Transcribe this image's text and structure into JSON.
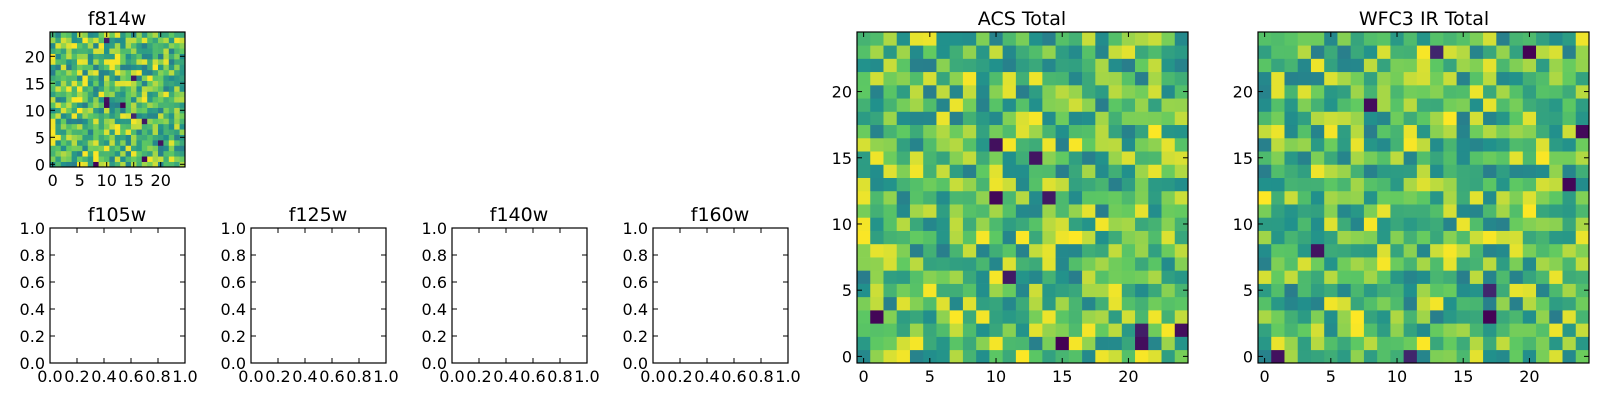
{
  "chart_data": [
    {
      "id": "f814w",
      "type": "heatmap",
      "title": "f814w",
      "grid_size": 25,
      "seed": 814,
      "dark_cells": 10,
      "xticks": [
        0,
        5,
        10,
        15,
        20
      ],
      "yticks": [
        0,
        5,
        10,
        15,
        20
      ],
      "xtick_labels": [
        "0",
        "5",
        "10",
        "15",
        "20"
      ],
      "ytick_labels": [
        "0",
        "5",
        "10",
        "15",
        "20"
      ],
      "xlim": [
        -0.5,
        24.5
      ],
      "ylim": [
        -0.5,
        24.5
      ],
      "colormap": "viridis"
    },
    {
      "id": "f105w",
      "type": "line",
      "title": "f105w",
      "series": [],
      "xlim": [
        0,
        1
      ],
      "ylim": [
        0,
        1
      ],
      "xticks": [
        0,
        0.2,
        0.4,
        0.6,
        0.8,
        1.0
      ],
      "yticks": [
        0,
        0.2,
        0.4,
        0.6,
        0.8,
        1.0
      ],
      "xtick_labels": [
        "0.0",
        "0.2",
        "0.4",
        "0.6",
        "0.8",
        "1.0"
      ],
      "ytick_labels": [
        "0.0",
        "0.2",
        "0.4",
        "0.6",
        "0.8",
        "1.0"
      ]
    },
    {
      "id": "f125w",
      "type": "line",
      "title": "f125w",
      "series": [],
      "xlim": [
        0,
        1
      ],
      "ylim": [
        0,
        1
      ],
      "xticks": [
        0,
        0.2,
        0.4,
        0.6,
        0.8,
        1.0
      ],
      "yticks": [
        0,
        0.2,
        0.4,
        0.6,
        0.8,
        1.0
      ],
      "xtick_labels": [
        "0.0",
        "0.2",
        "0.4",
        "0.6",
        "0.8",
        "1.0"
      ],
      "ytick_labels": [
        "0.0",
        "0.2",
        "0.4",
        "0.6",
        "0.8",
        "1.0"
      ]
    },
    {
      "id": "f140w",
      "type": "line",
      "title": "f140w",
      "series": [],
      "xlim": [
        0,
        1
      ],
      "ylim": [
        0,
        1
      ],
      "xticks": [
        0,
        0.2,
        0.4,
        0.6,
        0.8,
        1.0
      ],
      "yticks": [
        0,
        0.2,
        0.4,
        0.6,
        0.8,
        1.0
      ],
      "xtick_labels": [
        "0.0",
        "0.2",
        "0.4",
        "0.6",
        "0.8",
        "1.0"
      ],
      "ytick_labels": [
        "0.0",
        "0.2",
        "0.4",
        "0.6",
        "0.8",
        "1.0"
      ]
    },
    {
      "id": "f160w",
      "type": "line",
      "title": "f160w",
      "series": [],
      "xlim": [
        0,
        1
      ],
      "ylim": [
        0,
        1
      ],
      "xticks": [
        0,
        0.2,
        0.4,
        0.6,
        0.8,
        1.0
      ],
      "yticks": [
        0,
        0.2,
        0.4,
        0.6,
        0.8,
        1.0
      ],
      "xtick_labels": [
        "0.0",
        "0.2",
        "0.4",
        "0.6",
        "0.8",
        "1.0"
      ],
      "ytick_labels": [
        "0.0",
        "0.2",
        "0.4",
        "0.6",
        "0.8",
        "1.0"
      ]
    },
    {
      "id": "acs_total",
      "type": "heatmap",
      "title": "ACS Total",
      "grid_size": 25,
      "seed": 1234,
      "dark_cells": 10,
      "xticks": [
        0,
        5,
        10,
        15,
        20
      ],
      "yticks": [
        0,
        5,
        10,
        15,
        20
      ],
      "xtick_labels": [
        "0",
        "5",
        "10",
        "15",
        "20"
      ],
      "ytick_labels": [
        "0",
        "5",
        "10",
        "15",
        "20"
      ],
      "xlim": [
        -0.5,
        24.5
      ],
      "ylim": [
        -0.5,
        24.5
      ],
      "colormap": "viridis"
    },
    {
      "id": "wfc3_ir_total",
      "type": "heatmap",
      "title": "WFC3 IR Total",
      "grid_size": 25,
      "seed": 4321,
      "dark_cells": 10,
      "xticks": [
        0,
        5,
        10,
        15,
        20
      ],
      "yticks": [
        0,
        5,
        10,
        15,
        20
      ],
      "xtick_labels": [
        "0",
        "5",
        "10",
        "15",
        "20"
      ],
      "ytick_labels": [
        "0",
        "5",
        "10",
        "15",
        "20"
      ],
      "xlim": [
        -0.5,
        24.5
      ],
      "ylim": [
        -0.5,
        24.5
      ],
      "colormap": "viridis"
    }
  ],
  "colors": {
    "background": "#ffffff",
    "axis": "#000000",
    "dark": "#440154",
    "blue": "#31688e",
    "teal": "#21918c",
    "green": "#35b779",
    "lime": "#90d743",
    "yellow": "#fde725"
  }
}
